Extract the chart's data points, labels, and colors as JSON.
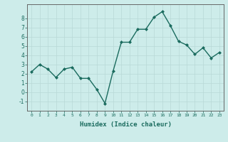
{
  "x": [
    0,
    1,
    2,
    3,
    4,
    5,
    6,
    7,
    8,
    9,
    10,
    11,
    12,
    13,
    14,
    15,
    16,
    17,
    18,
    19,
    20,
    21,
    22,
    23
  ],
  "y": [
    2.2,
    3.0,
    2.5,
    1.6,
    2.5,
    2.7,
    1.5,
    1.5,
    0.3,
    -1.2,
    2.3,
    5.4,
    5.4,
    6.8,
    6.8,
    8.1,
    8.7,
    7.2,
    5.5,
    5.1,
    4.1,
    4.8,
    3.7,
    4.3
  ],
  "line_color": "#1a6b5e",
  "marker": "D",
  "markersize": 2.0,
  "linewidth": 1.0,
  "xlabel": "Humidex (Indice chaleur)",
  "xlim": [
    -0.5,
    23.5
  ],
  "ylim": [
    -2.0,
    9.5
  ],
  "yticks": [
    -1,
    0,
    1,
    2,
    3,
    4,
    5,
    6,
    7,
    8
  ],
  "xticks": [
    0,
    1,
    2,
    3,
    4,
    5,
    6,
    7,
    8,
    9,
    10,
    11,
    12,
    13,
    14,
    15,
    16,
    17,
    18,
    19,
    20,
    21,
    22,
    23
  ],
  "xtick_labels": [
    "0",
    "1",
    "2",
    "3",
    "4",
    "5",
    "6",
    "7",
    "8",
    "9",
    "10",
    "11",
    "12",
    "13",
    "14",
    "15",
    "16",
    "17",
    "18",
    "19",
    "20",
    "21",
    "22",
    "23"
  ],
  "bg_color": "#cdecea",
  "grid_color": "#b8d8d6",
  "spine_color": "#666666",
  "tick_color": "#1a6b5e",
  "label_color": "#1a6b5e"
}
